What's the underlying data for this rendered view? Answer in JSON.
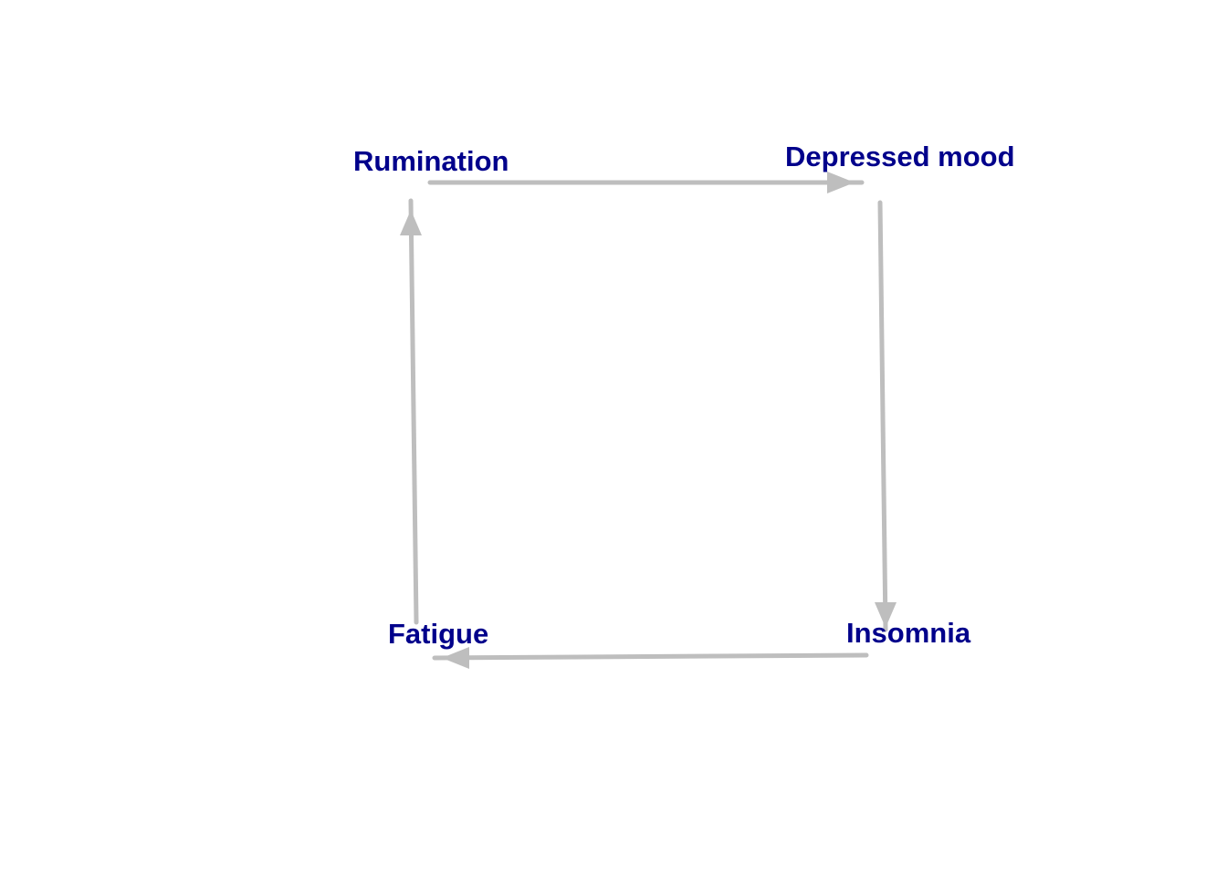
{
  "diagram": {
    "nodes": [
      {
        "id": "rumination",
        "label": "Rumination"
      },
      {
        "id": "depressed_mood",
        "label": "Depressed mood"
      },
      {
        "id": "insomnia",
        "label": "Insomnia"
      },
      {
        "id": "fatigue",
        "label": "Fatigue"
      }
    ],
    "edges": [
      {
        "from": "rumination",
        "to": "depressed_mood"
      },
      {
        "from": "depressed_mood",
        "to": "insomnia"
      },
      {
        "from": "insomnia",
        "to": "fatigue"
      },
      {
        "from": "fatigue",
        "to": "rumination"
      }
    ],
    "colors": {
      "label": "#00008B",
      "edge": "#BEBEBE",
      "background": "#FFFFFF"
    }
  }
}
